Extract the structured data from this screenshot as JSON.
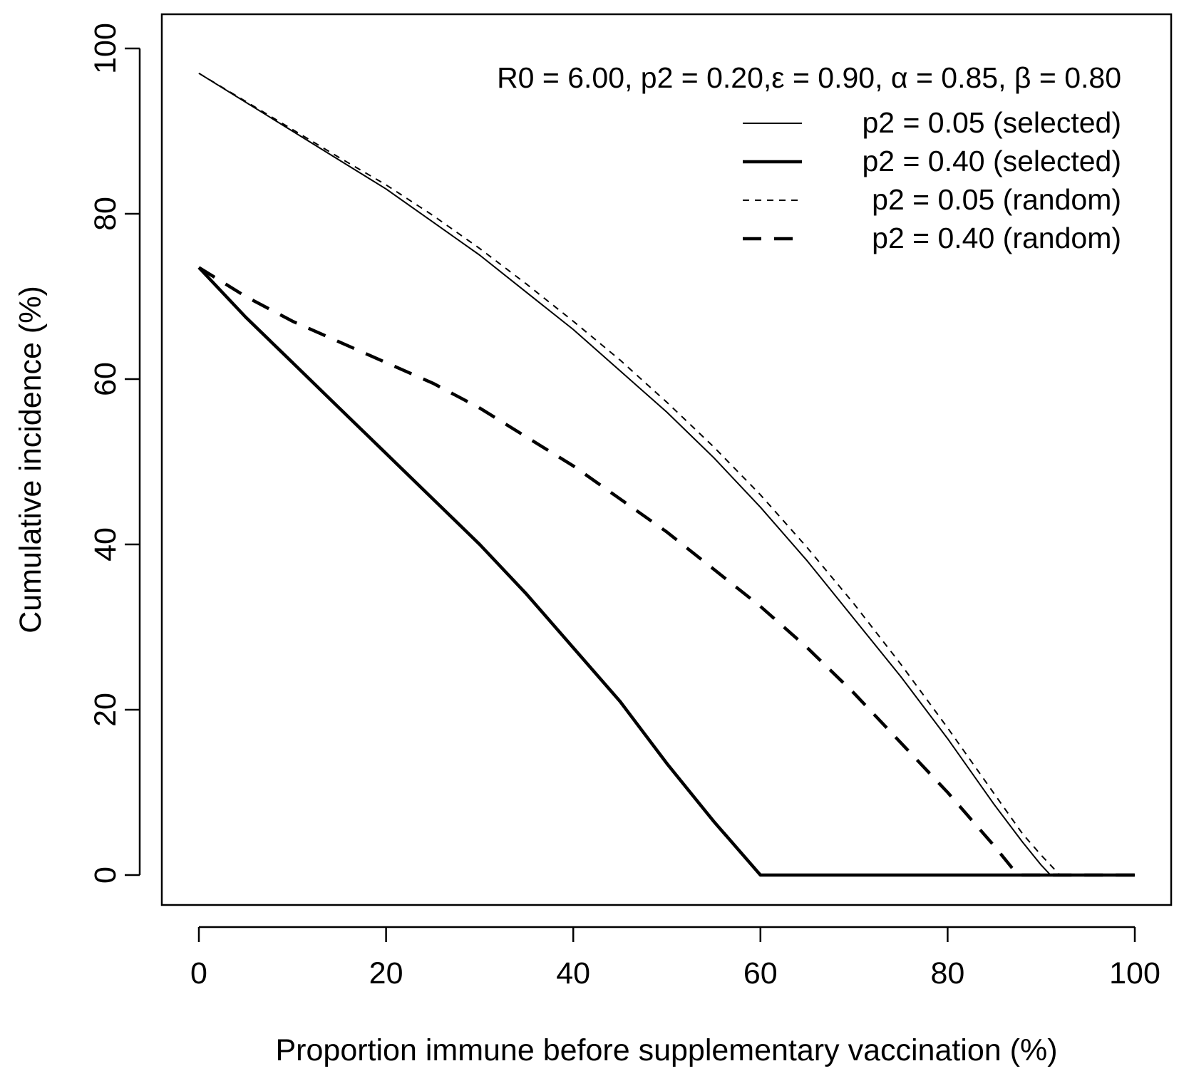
{
  "chart_data": {
    "type": "line",
    "title": "",
    "annotation": "R0 = 6.00, p2 = 0.20,ε = 0.90, α = 0.85, β = 0.80",
    "xlabel": "Proportion immune before supplementary vaccination (%)",
    "ylabel": "Cumulative incidence (%)",
    "xlim": [
      -4,
      104
    ],
    "ylim": [
      -4,
      104
    ],
    "xticks": [
      0,
      20,
      40,
      60,
      80,
      100
    ],
    "yticks": [
      0,
      20,
      40,
      60,
      80,
      100
    ],
    "grid": false,
    "legend_position": "top-right",
    "series": [
      {
        "name": "p2 = 0.05 (selected)",
        "style": "solid-thin",
        "x": [
          0,
          5,
          10,
          15,
          20,
          25,
          30,
          35,
          40,
          45,
          50,
          55,
          60,
          65,
          70,
          75,
          80,
          85,
          88,
          90,
          91,
          100
        ],
        "y": [
          97,
          93.5,
          90,
          86.5,
          83,
          79,
          75,
          70.5,
          66,
          61,
          56,
          50.5,
          44.5,
          38,
          31,
          24,
          16.5,
          8.5,
          4,
          1.2,
          0,
          0
        ]
      },
      {
        "name": "p2 = 0.40 (selected)",
        "style": "solid-thick",
        "x": [
          0,
          5,
          10,
          15,
          20,
          25,
          30,
          35,
          40,
          45,
          50,
          55,
          60,
          62,
          64.5,
          100
        ],
        "y": [
          73.5,
          67.5,
          62,
          56.5,
          51,
          45.5,
          40,
          34,
          27.5,
          21,
          13.5,
          6.5,
          0,
          0,
          0,
          0
        ]
      },
      {
        "name": "p2 = 0.05 (random)",
        "style": "dashed-thin",
        "x": [
          0,
          5,
          10,
          15,
          20,
          25,
          30,
          35,
          40,
          45,
          50,
          55,
          60,
          65,
          70,
          75,
          80,
          85,
          88,
          90,
          92,
          100
        ],
        "y": [
          97,
          93.6,
          90.2,
          86.8,
          83.5,
          79.8,
          75.8,
          71.5,
          67,
          62.3,
          57.2,
          51.8,
          46,
          39.6,
          32.8,
          25.5,
          17.8,
          9.8,
          5,
          2.4,
          0,
          0
        ]
      },
      {
        "name": "p2 = 0.40 (random)",
        "style": "dashed-thick",
        "x": [
          0,
          5,
          10,
          15,
          20,
          25,
          30,
          35,
          40,
          45,
          50,
          55,
          60,
          65,
          70,
          75,
          80,
          85,
          87.5,
          100
        ],
        "y": [
          73.5,
          70,
          67,
          64.5,
          62,
          59.5,
          56.5,
          53,
          49.5,
          45.5,
          41.5,
          37,
          32.5,
          27.5,
          22,
          16,
          10,
          3.5,
          0,
          0
        ]
      }
    ]
  }
}
